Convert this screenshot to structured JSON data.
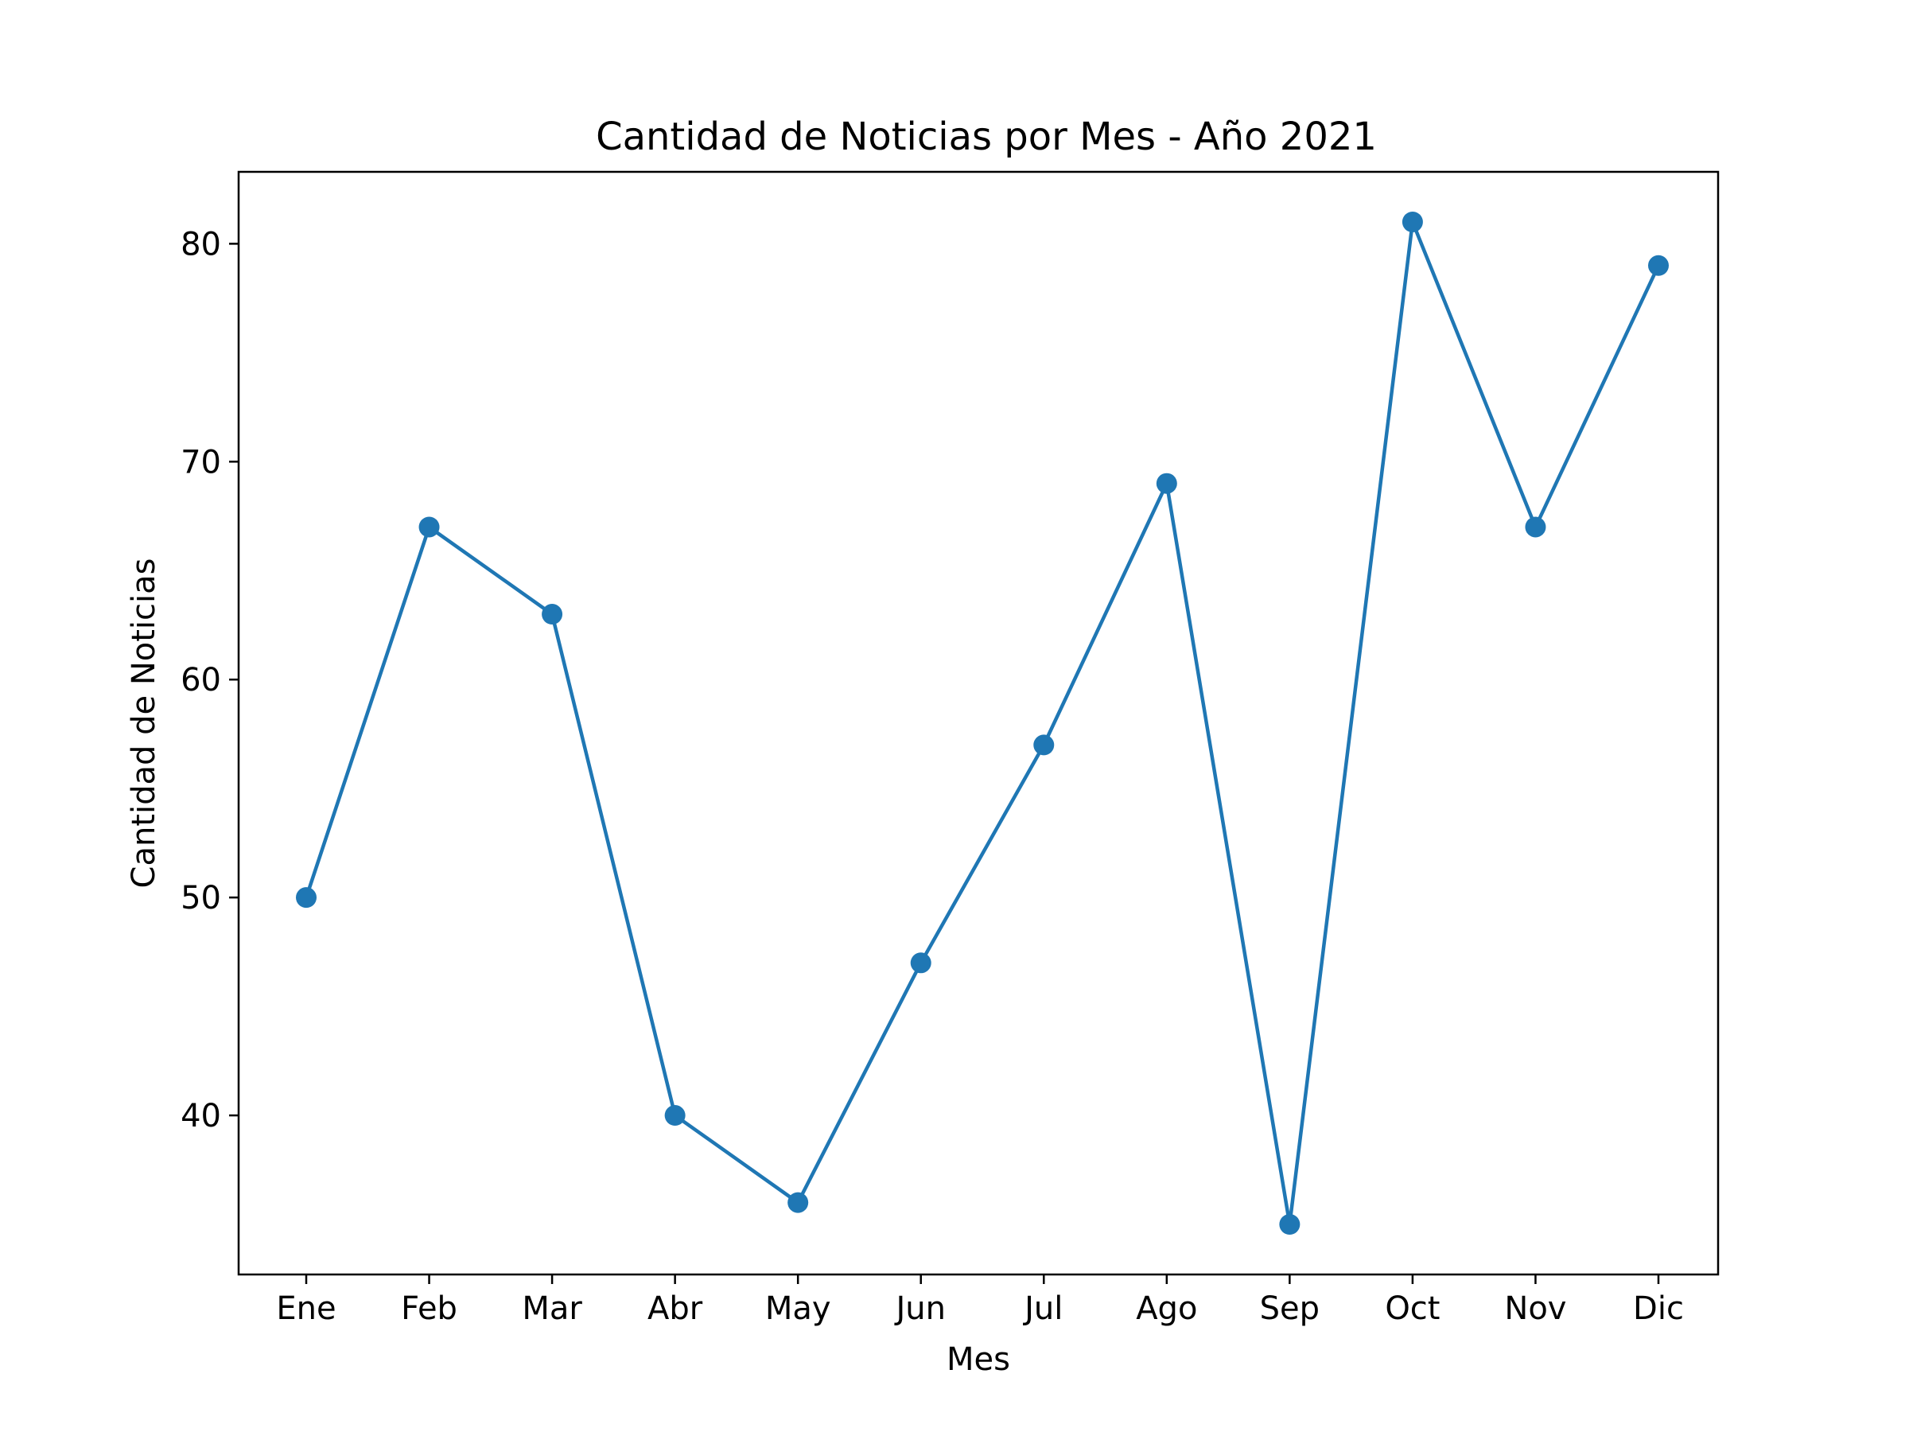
{
  "chart_data": {
    "type": "line",
    "title": "Cantidad de Noticias por Mes - Año 2021",
    "xlabel": "Mes",
    "ylabel": "Cantidad de Noticias",
    "categories": [
      "Ene",
      "Feb",
      "Mar",
      "Abr",
      "May",
      "Jun",
      "Jul",
      "Ago",
      "Sep",
      "Oct",
      "Nov",
      "Dic"
    ],
    "series": [
      {
        "values": [
          50,
          67,
          63,
          40,
          36,
          47,
          57,
          69,
          35,
          81,
          67,
          79
        ],
        "color": "#1f77b4",
        "marker": "circle"
      }
    ],
    "ylim": [
      32.7,
      83.3
    ],
    "yticks": [
      40,
      50,
      60,
      70,
      80
    ],
    "grid": false,
    "legend": false
  }
}
